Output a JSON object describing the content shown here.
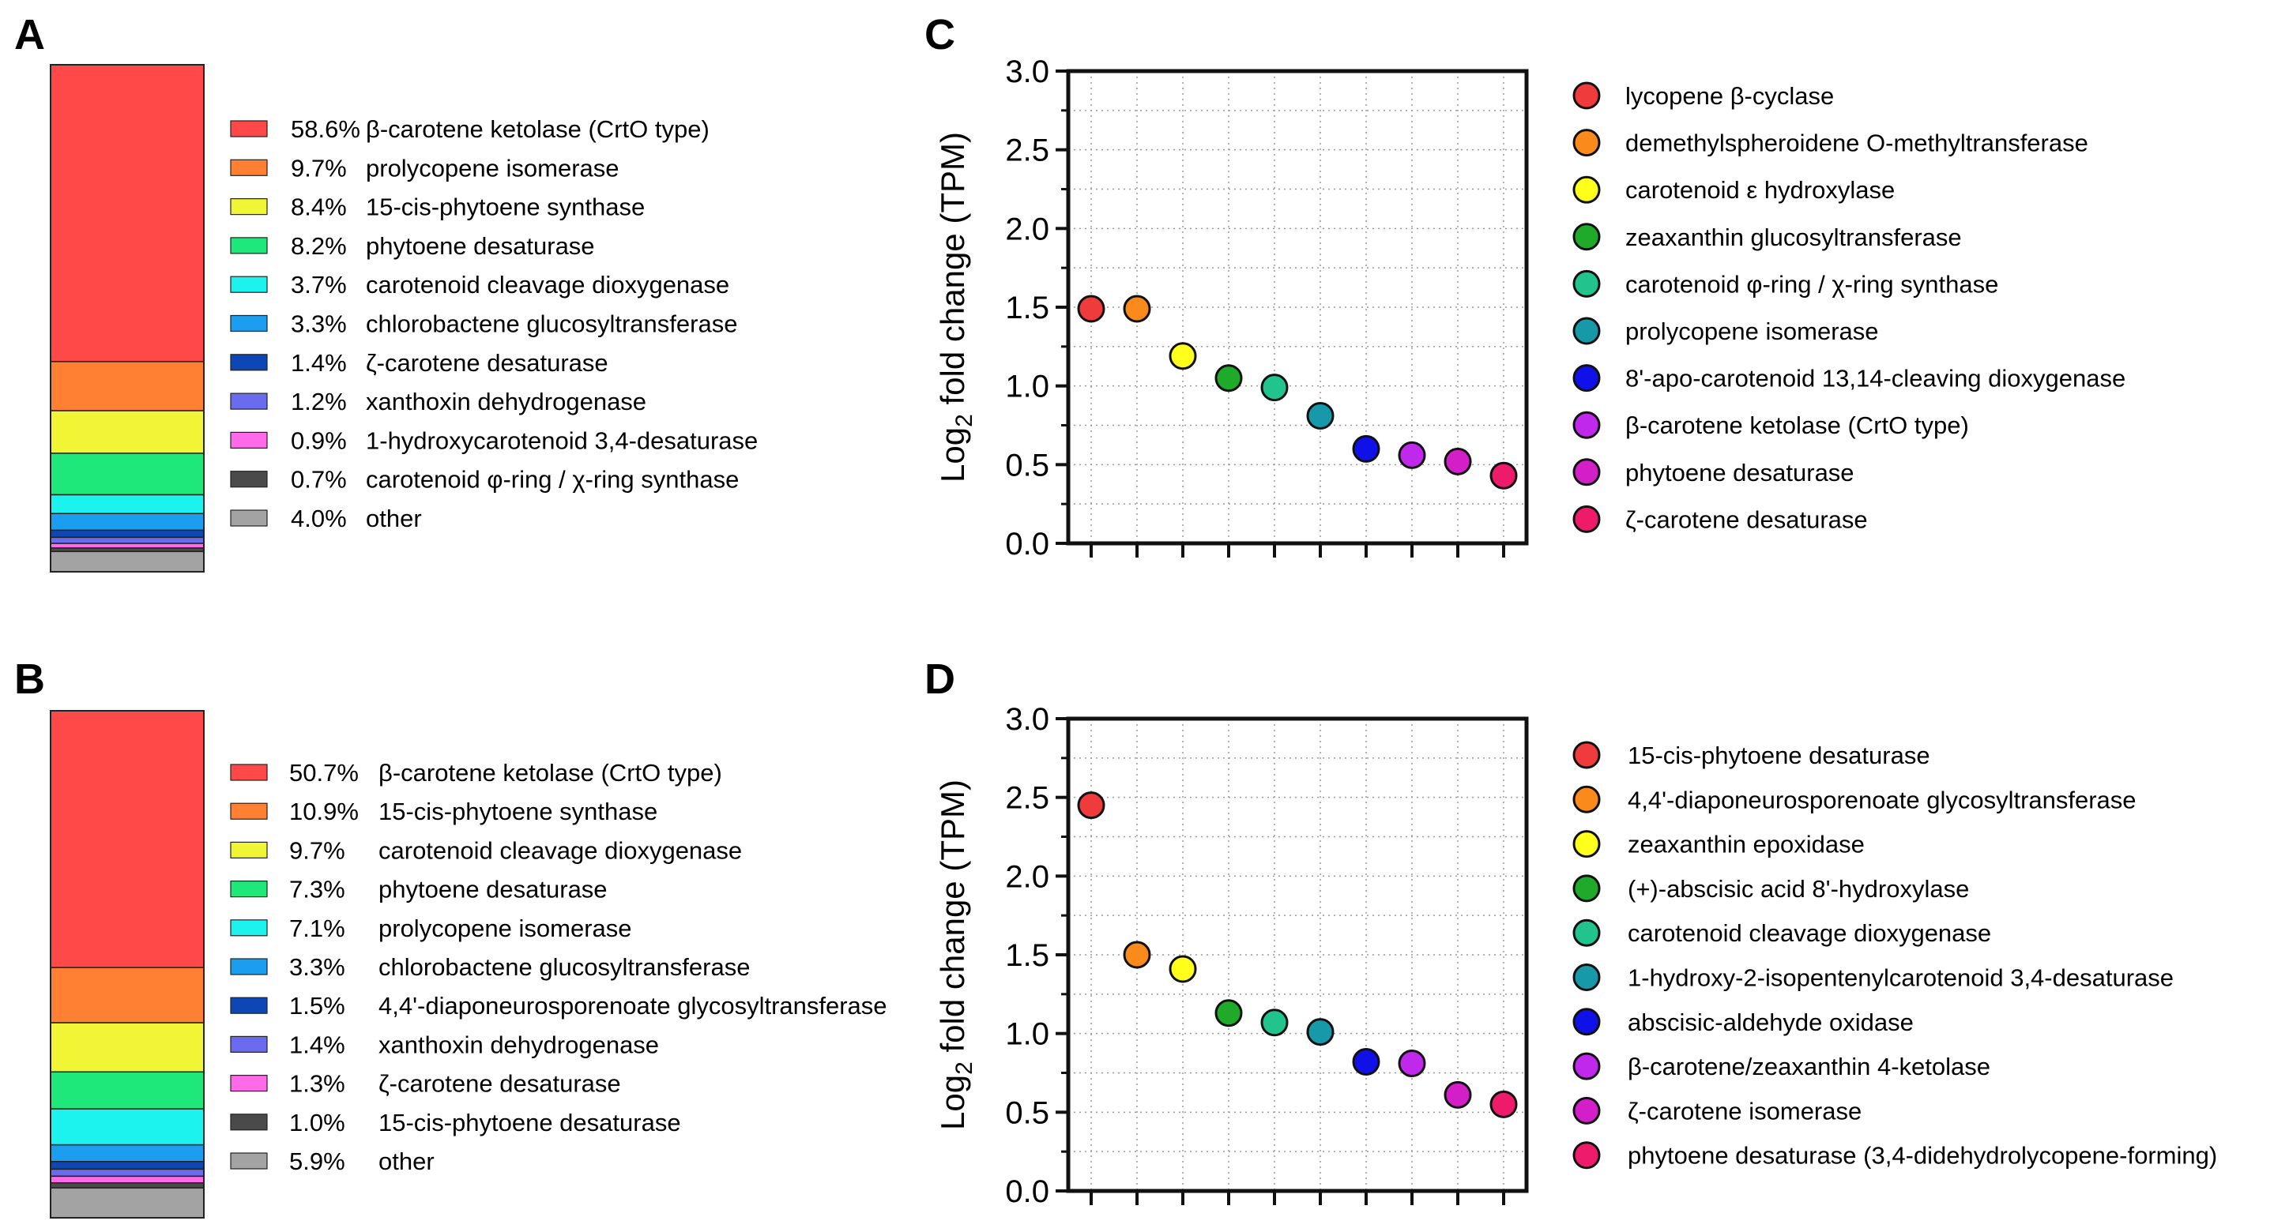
{
  "colors": {
    "pal_stack": [
      "#ff4848",
      "#ff8033",
      "#f0f535",
      "#1ee87a",
      "#1cf2ee",
      "#1c9ef0",
      "#0d47b5",
      "#6b6bf0",
      "#ff6ae8",
      "#4a4a4a",
      "#a3a3a3"
    ],
    "pal_dot": [
      "#ef3b3b",
      "#fb8a1d",
      "#ffff1c",
      "#1faa2a",
      "#22c48e",
      "#1899a9",
      "#1010e8",
      "#c029ec",
      "#d21fc8",
      "#ee1b6b"
    ]
  },
  "chart_data": [
    {
      "panel": "A",
      "type": "bar",
      "subtype": "stacked-100",
      "categories": [
        "β-carotene ketolase (CrtO type)",
        "prolycopene isomerase",
        "15-cis-phytoene synthase",
        "phytoene desaturase",
        "carotenoid cleavage dioxygenase",
        "chlorobactene glucosyltransferase",
        "ζ-carotene desaturase",
        "xanthoxin dehydrogenase",
        "1-hydroxycarotenoid 3,4-desaturase",
        "carotenoid φ-ring / χ-ring synthase",
        "other"
      ],
      "values": [
        58.6,
        9.7,
        8.4,
        8.2,
        3.7,
        3.3,
        1.4,
        1.2,
        0.9,
        0.7,
        4.0
      ],
      "labels": [
        "58.6%",
        "9.7%",
        "8.4%",
        "8.2%",
        "3.7%",
        "3.3%",
        "1.4%",
        "1.2%",
        "0.9%",
        "0.7%",
        "4.0%"
      ],
      "legend_position": "right"
    },
    {
      "panel": "B",
      "type": "bar",
      "subtype": "stacked-100",
      "categories": [
        "β-carotene ketolase (CrtO type)",
        "15-cis-phytoene synthase",
        "carotenoid cleavage dioxygenase",
        "phytoene desaturase",
        "prolycopene isomerase",
        "chlorobactene glucosyltransferase",
        "4,4'-diaponeurosporenoate glycosyltransferase",
        "xanthoxin dehydrogenase",
        "ζ-carotene desaturase",
        "15-cis-phytoene desaturase",
        "other"
      ],
      "values": [
        50.7,
        10.9,
        9.7,
        7.3,
        7.1,
        3.3,
        1.5,
        1.4,
        1.3,
        1.0,
        5.9
      ],
      "labels": [
        "50.7%",
        "10.9%",
        "9.7%",
        "7.3%",
        "7.1%",
        "3.3%",
        "1.5%",
        "1.4%",
        "1.3%",
        "1.0%",
        "5.9%"
      ],
      "legend_position": "right"
    },
    {
      "panel": "C",
      "type": "scatter",
      "ylabel_main": "Log",
      "ylabel_sub": "2",
      "ylabel_rest": " fold change  (TPM)",
      "ylim": [
        0,
        3
      ],
      "ytick_labels": [
        "0.0",
        "0.5",
        "1.0",
        "1.5",
        "2.0",
        "2.5",
        "3.0"
      ],
      "grid": true,
      "categories": [
        "lycopene β-cyclase",
        "demethylspheroidene O-methyltransferase",
        "carotenoid ε hydroxylase",
        "zeaxanthin glucosyltransferase",
        "carotenoid φ-ring / χ-ring synthase",
        "prolycopene isomerase",
        "8'-apo-carotenoid 13,14-cleaving dioxygenase",
        "β-carotene ketolase (CrtO type)",
        "phytoene desaturase",
        "ζ-carotene desaturase"
      ],
      "values": [
        1.49,
        1.49,
        1.19,
        1.05,
        0.99,
        0.81,
        0.6,
        0.56,
        0.52,
        0.43
      ],
      "legend_position": "right"
    },
    {
      "panel": "D",
      "type": "scatter",
      "ylabel_main": "Log",
      "ylabel_sub": "2",
      "ylabel_rest": " fold change  (TPM)",
      "ylim": [
        0,
        3
      ],
      "ytick_labels": [
        "0.0",
        "0.5",
        "1.0",
        "1.5",
        "2.0",
        "2.5",
        "3.0"
      ],
      "grid": true,
      "categories": [
        "15-cis-phytoene desaturase",
        "4,4'-diaponeurosporenoate glycosyltransferase",
        "zeaxanthin epoxidase",
        "(+)-abscisic acid 8'-hydroxylase",
        "carotenoid cleavage dioxygenase",
        "1-hydroxy-2-isopentenylcarotenoid 3,4-desaturase",
        "abscisic-aldehyde oxidase",
        "β-carotene/zeaxanthin 4-ketolase",
        "ζ-carotene isomerase",
        "phytoene desaturase (3,4-didehydrolycopene-forming)"
      ],
      "values": [
        2.45,
        1.5,
        1.41,
        1.13,
        1.07,
        1.01,
        0.82,
        0.81,
        0.61,
        0.55
      ],
      "legend_position": "right"
    }
  ]
}
